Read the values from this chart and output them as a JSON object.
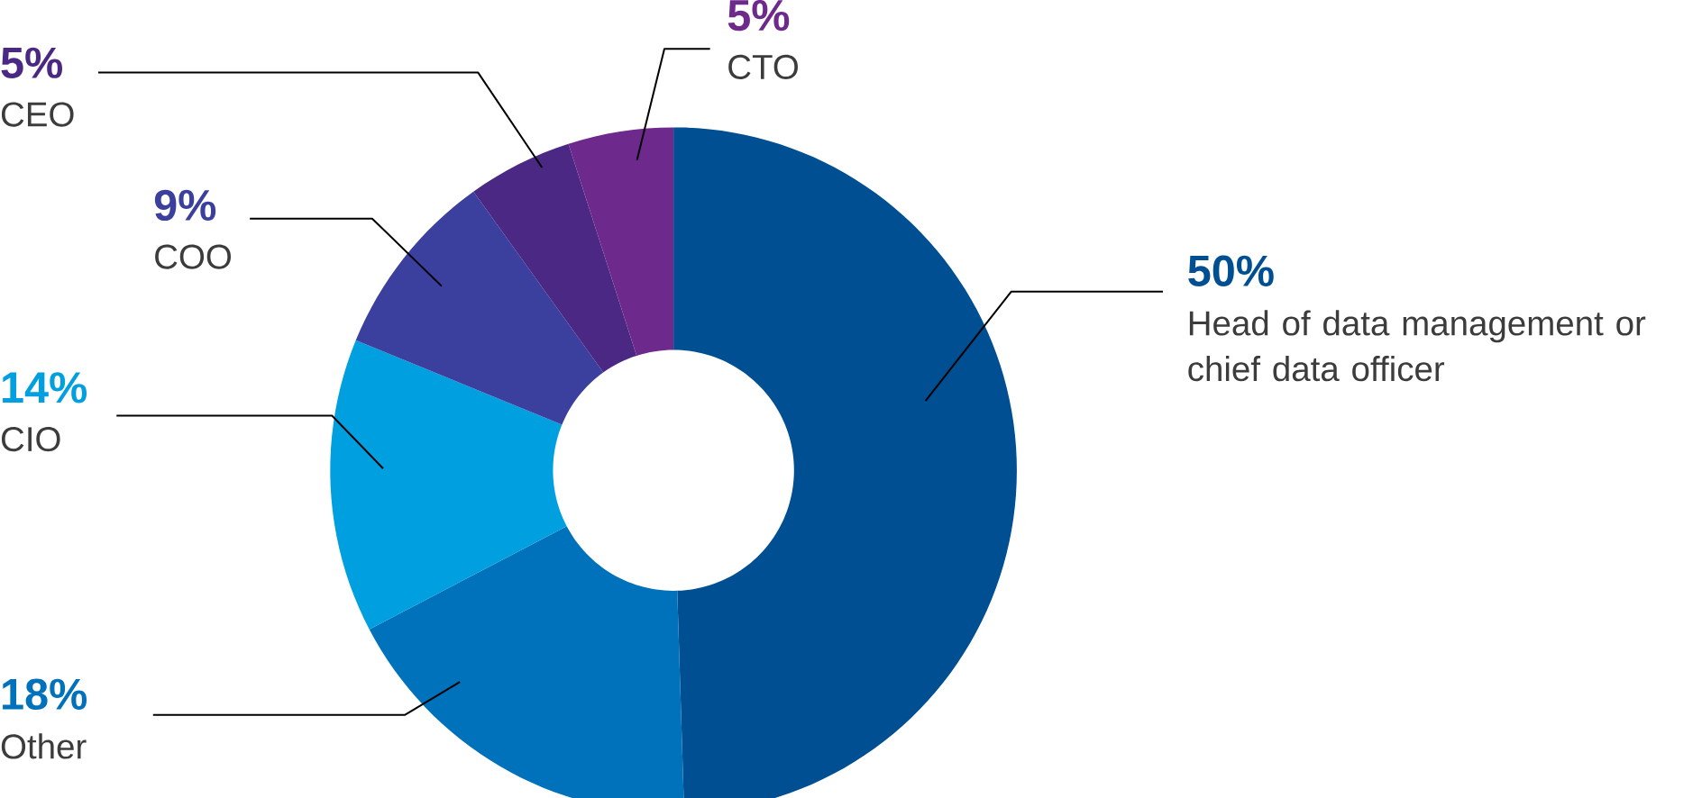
{
  "chart_data": {
    "type": "donut",
    "categories": [
      "Head of data management or chief data officer",
      "Other",
      "CIO",
      "COO",
      "CEO",
      "CTO"
    ],
    "values": [
      50,
      18,
      14,
      9,
      5,
      5
    ],
    "value_labels": [
      "50%",
      "18%",
      "14%",
      "9%",
      "5%",
      "5%"
    ],
    "colors": [
      "#004f93",
      "#0072bc",
      "#009fdf",
      "#3b3f9e",
      "#4b2884",
      "#6d2a8c"
    ]
  }
}
